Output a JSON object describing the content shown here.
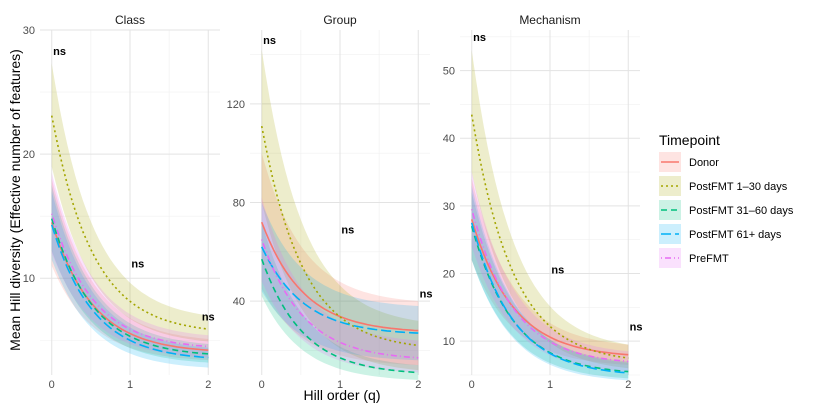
{
  "chart_data": {
    "type": "line",
    "xlabel": "Hill order (q)",
    "ylabel": "Mean Hill diversity (Effective number of features)",
    "grid": true,
    "legend": {
      "title": "Timepoint",
      "placement": "right",
      "entries": [
        {
          "name": "Donor",
          "color": "#F8766D",
          "dash": "solid"
        },
        {
          "name": "PostFMT 1–30 days",
          "color": "#A3A500",
          "dash": "dotted"
        },
        {
          "name": "PostFMT 31–60 days",
          "color": "#00BF7D",
          "dash": "dashed"
        },
        {
          "name": "PostFMT 61+ days",
          "color": "#00B0F6",
          "dash": "longdash"
        },
        {
          "name": "PreFMT",
          "color": "#E76BF3",
          "dash": "dotdash"
        }
      ]
    },
    "panels": [
      {
        "title": "Class",
        "ylim": [
          2.2,
          30
        ],
        "yticks": [
          10,
          20,
          30
        ],
        "xticks": [
          0,
          1,
          2
        ],
        "annotations": [
          {
            "text": "ns",
            "x": 0.1,
            "y": 28.3
          },
          {
            "text": "ns",
            "x": 1.1,
            "y": 11.2
          },
          {
            "text": "ns",
            "x": 2.0,
            "y": 6.9
          }
        ],
        "series": [
          {
            "name": "Donor",
            "start": 14.5,
            "end": 4.2,
            "lo_start": 11.0,
            "lo_end": 3.4,
            "hi_start": 18.0,
            "hi_end": 5.1
          },
          {
            "name": "PostFMT 1–30 days",
            "start": 23.1,
            "end": 5.9,
            "lo_start": 19.0,
            "lo_end": 4.9,
            "hi_start": 27.3,
            "hi_end": 7.0
          },
          {
            "name": "PostFMT 31–60 days",
            "start": 14.8,
            "end": 3.9,
            "lo_start": 12.2,
            "lo_end": 3.2,
            "hi_start": 17.5,
            "hi_end": 4.7
          },
          {
            "name": "PostFMT 61+ days",
            "start": 14.3,
            "end": 3.6,
            "lo_start": 11.5,
            "lo_end": 2.8,
            "hi_start": 17.0,
            "hi_end": 4.4
          },
          {
            "name": "PreFMT",
            "start": 15.2,
            "end": 4.5,
            "lo_start": 12.0,
            "lo_end": 3.6,
            "hi_start": 18.5,
            "hi_end": 5.4
          }
        ]
      },
      {
        "title": "Group",
        "ylim": [
          10,
          150
        ],
        "yticks": [
          40,
          80,
          120
        ],
        "xticks": [
          0,
          1,
          2
        ],
        "annotations": [
          {
            "text": "ns",
            "x": 0.1,
            "y": 146
          },
          {
            "text": "ns",
            "x": 1.1,
            "y": 69
          },
          {
            "text": "ns",
            "x": 2.1,
            "y": 43
          }
        ],
        "series": [
          {
            "name": "Donor",
            "start": 72,
            "end": 28,
            "lo_start": 45,
            "lo_end": 14,
            "hi_start": 100,
            "hi_end": 40
          },
          {
            "name": "PostFMT 1–30 days",
            "start": 111,
            "end": 22,
            "lo_start": 80,
            "lo_end": 12,
            "hi_start": 142,
            "hi_end": 32
          },
          {
            "name": "PostFMT 31–60 days",
            "start": 57,
            "end": 11,
            "lo_start": 42,
            "lo_end": 8,
            "hi_start": 72,
            "hi_end": 14
          },
          {
            "name": "PostFMT 61+ days",
            "start": 62,
            "end": 27,
            "lo_start": 44,
            "lo_end": 16,
            "hi_start": 80,
            "hi_end": 38
          },
          {
            "name": "PreFMT",
            "start": 65,
            "end": 17,
            "lo_start": 48,
            "lo_end": 11,
            "hi_start": 82,
            "hi_end": 24
          }
        ]
      },
      {
        "title": "Mechanism",
        "ylim": [
          5,
          56
        ],
        "yticks": [
          10,
          20,
          30,
          40,
          50
        ],
        "xticks": [
          0,
          1,
          2
        ],
        "annotations": [
          {
            "text": "ns",
            "x": 0.1,
            "y": 55
          },
          {
            "text": "ns",
            "x": 1.1,
            "y": 20.6
          },
          {
            "text": "ns",
            "x": 2.1,
            "y": 12.2
          }
        ],
        "series": [
          {
            "name": "Donor",
            "start": 28,
            "end": 8.0,
            "lo_start": 22,
            "lo_end": 6.5,
            "hi_start": 34,
            "hi_end": 9.5
          },
          {
            "name": "PostFMT 1–30 days",
            "start": 43.5,
            "end": 7.5,
            "lo_start": 35,
            "lo_end": 6.0,
            "hi_start": 53,
            "hi_end": 9.5
          },
          {
            "name": "PostFMT 31–60 days",
            "start": 27,
            "end": 5.5,
            "lo_start": 22,
            "lo_end": 4.5,
            "hi_start": 32,
            "hi_end": 7.0
          },
          {
            "name": "PostFMT 61+ days",
            "start": 27.5,
            "end": 5.3,
            "lo_start": 22,
            "lo_end": 4.2,
            "hi_start": 33,
            "hi_end": 6.8
          },
          {
            "name": "PreFMT",
            "start": 29.5,
            "end": 7.0,
            "lo_start": 24,
            "lo_end": 5.5,
            "hi_start": 35,
            "hi_end": 8.5
          }
        ]
      }
    ]
  }
}
